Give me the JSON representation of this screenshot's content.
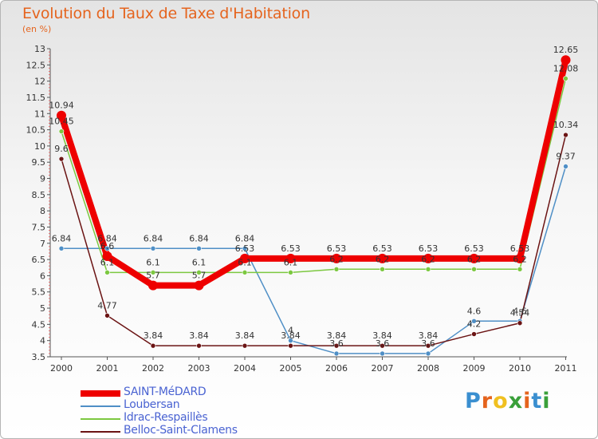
{
  "header": {
    "title": "Evolution du Taux de Taxe d'Habitation",
    "subtitle": "(en %)"
  },
  "brand": {
    "text": "Proxiti",
    "colors": [
      "#3a8fd0",
      "#e5641e",
      "#f0c020",
      "#3aa03a",
      "#e5641e",
      "#3a8fd0",
      "#3aa03a"
    ]
  },
  "chart_data": {
    "type": "line",
    "title": "Evolution du Taux de Taxe d'Habitation",
    "ylabel": "(en %)",
    "xlabel": "",
    "x": [
      2000,
      2001,
      2002,
      2003,
      2004,
      2005,
      2006,
      2007,
      2008,
      2009,
      2010,
      2011
    ],
    "ylim": [
      3.5,
      13
    ],
    "yticks": [
      "3.5",
      "4",
      "4.5",
      "5",
      "5.5",
      "6",
      "6.5",
      "7",
      "7.5",
      "8",
      "8.5",
      "9",
      "9.5",
      "10",
      "10.5",
      "11",
      "11.5",
      "12",
      "12.5",
      "13"
    ],
    "grid": false,
    "legend_position": "bottom-left",
    "series": [
      {
        "name": "SAINT-MéDARD",
        "color": "#ee0000",
        "values": [
          10.94,
          6.6,
          5.7,
          5.7,
          6.53,
          6.53,
          6.53,
          6.53,
          6.53,
          6.53,
          6.53,
          12.65
        ],
        "labels": [
          "10.94",
          "6.6",
          "5.7",
          "5.7",
          "6.53",
          "6.53",
          "6.53",
          "6.53",
          "6.53",
          "6.53",
          "6.53",
          "12.65"
        ]
      },
      {
        "name": "Loubersan",
        "color": "#4f8fc6",
        "values": [
          6.84,
          6.84,
          6.84,
          6.84,
          6.84,
          4.0,
          3.6,
          3.6,
          3.6,
          4.6,
          4.6,
          9.37
        ],
        "labels": [
          "6.84",
          "6.84",
          "6.84",
          "6.84",
          "6.84",
          "4",
          "3.6",
          "3.6",
          "3.6",
          "4.6",
          "4.6",
          "9.37"
        ]
      },
      {
        "name": "Idrac-Respaillès",
        "color": "#7cc840",
        "values": [
          10.45,
          6.1,
          6.1,
          6.1,
          6.1,
          6.1,
          6.2,
          6.2,
          6.2,
          6.2,
          6.2,
          12.08
        ],
        "labels": [
          "10.45",
          "6.1",
          "6.1",
          "6.1",
          "6.1",
          "6.1",
          "6.2",
          "6.2",
          "6.2",
          "6.2",
          "6.2",
          "12.08"
        ]
      },
      {
        "name": "Belloc-Saint-Clamens",
        "color": "#6b1414",
        "values": [
          9.6,
          4.77,
          3.84,
          3.84,
          3.84,
          3.84,
          3.84,
          3.84,
          3.84,
          4.2,
          4.54,
          10.34
        ],
        "labels": [
          "9.6",
          "4.77",
          "3.84",
          "3.84",
          "3.84",
          "3.84",
          "3.84",
          "3.84",
          "3.84",
          "4.2",
          "4.54",
          "10.34"
        ]
      }
    ]
  }
}
